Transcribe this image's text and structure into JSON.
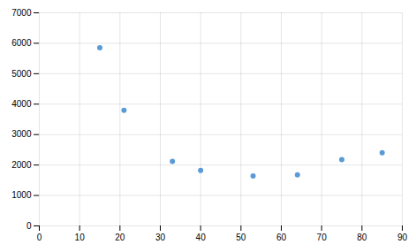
{
  "chart_data": {
    "type": "scatter",
    "x": [
      15,
      21,
      33,
      40,
      53,
      64,
      75,
      85
    ],
    "values": [
      5850,
      3800,
      2120,
      1820,
      1640,
      1680,
      2180,
      2400
    ],
    "color": "#5b9bd5",
    "xlim": [
      0,
      90
    ],
    "ylim": [
      0,
      7000
    ],
    "xticks": [
      0,
      10,
      20,
      30,
      40,
      50,
      60,
      70,
      80,
      90
    ],
    "yticks": [
      0,
      1000,
      2000,
      3000,
      4000,
      5000,
      6000,
      7000
    ],
    "grid": true
  }
}
